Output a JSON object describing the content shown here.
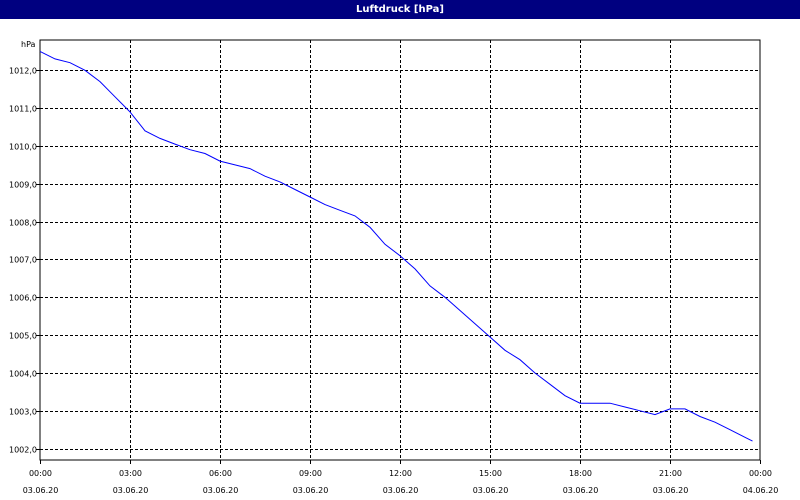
{
  "chart_data": {
    "type": "line",
    "title": "Luftdruck [hPa]",
    "ylabel": "hPa",
    "xlabel": "",
    "ylim": [
      1001.7,
      1012.8
    ],
    "y_ticks": [
      1012.0,
      1011.0,
      1010.0,
      1009.0,
      1008.0,
      1007.0,
      1006.0,
      1005.0,
      1004.0,
      1003.0,
      1002.0
    ],
    "y_tick_labels": [
      "1012,0",
      "1011,0",
      "1010,0",
      "1009,0",
      "1008,0",
      "1007,0",
      "1006,0",
      "1005,0",
      "1004,0",
      "1003,0",
      "1002,0"
    ],
    "x_ticks": [
      {
        "time": "00:00",
        "date": "03.06.20"
      },
      {
        "time": "03:00",
        "date": "03.06.20"
      },
      {
        "time": "06:00",
        "date": "03.06.20"
      },
      {
        "time": "09:00",
        "date": "03.06.20"
      },
      {
        "time": "12:00",
        "date": "03.06.20"
      },
      {
        "time": "15:00",
        "date": "03.06.20"
      },
      {
        "time": "18:00",
        "date": "03.06.20"
      },
      {
        "time": "21:00",
        "date": "03.06.20"
      },
      {
        "time": "00:00",
        "date": "04.06.20"
      }
    ],
    "grid": true,
    "series": [
      {
        "color": "#0000ff",
        "x": [
          "03.06.20 00:00",
          "03.06.20 00:30",
          "03.06.20 01:00",
          "03.06.20 01:30",
          "03.06.20 02:00",
          "03.06.20 02:30",
          "03.06.20 03:00",
          "03.06.20 03:30",
          "03.06.20 04:00",
          "03.06.20 04:30",
          "03.06.20 05:00",
          "03.06.20 05:30",
          "03.06.20 06:00",
          "03.06.20 06:30",
          "03.06.20 07:00",
          "03.06.20 07:30",
          "03.06.20 08:00",
          "03.06.20 08:30",
          "03.06.20 09:00",
          "03.06.20 09:30",
          "03.06.20 10:00",
          "03.06.20 10:30",
          "03.06.20 11:00",
          "03.06.20 11:30",
          "03.06.20 12:00",
          "03.06.20 12:30",
          "03.06.20 13:00",
          "03.06.20 13:30",
          "03.06.20 14:00",
          "03.06.20 14:30",
          "03.06.20 15:00",
          "03.06.20 15:30",
          "03.06.20 16:00",
          "03.06.20 16:30",
          "03.06.20 17:00",
          "03.06.20 17:30",
          "03.06.20 18:00",
          "03.06.20 18:30",
          "03.06.20 19:00",
          "03.06.20 19:30",
          "03.06.20 20:00",
          "03.06.20 20:30",
          "03.06.20 21:00",
          "03.06.20 21:30",
          "03.06.20 22:00",
          "03.06.20 22:30",
          "03.06.20 23:00",
          "03.06.20 23:30",
          "03.06.20 23:45"
        ],
        "y": [
          1012.5,
          1012.3,
          1012.2,
          1012.0,
          1011.7,
          1011.3,
          1010.9,
          1010.4,
          1010.2,
          1010.05,
          1009.9,
          1009.8,
          1009.6,
          1009.5,
          1009.4,
          1009.2,
          1009.05,
          1008.85,
          1008.65,
          1008.45,
          1008.3,
          1008.15,
          1007.85,
          1007.4,
          1007.1,
          1006.75,
          1006.3,
          1006.0,
          1005.65,
          1005.3,
          1004.95,
          1004.6,
          1004.35,
          1004.0,
          1003.7,
          1003.4,
          1003.2,
          1003.2,
          1003.2,
          1003.1,
          1003.0,
          1002.9,
          1003.05,
          1003.05,
          1002.85,
          1002.7,
          1002.5,
          1002.3,
          1002.2
        ]
      }
    ]
  }
}
